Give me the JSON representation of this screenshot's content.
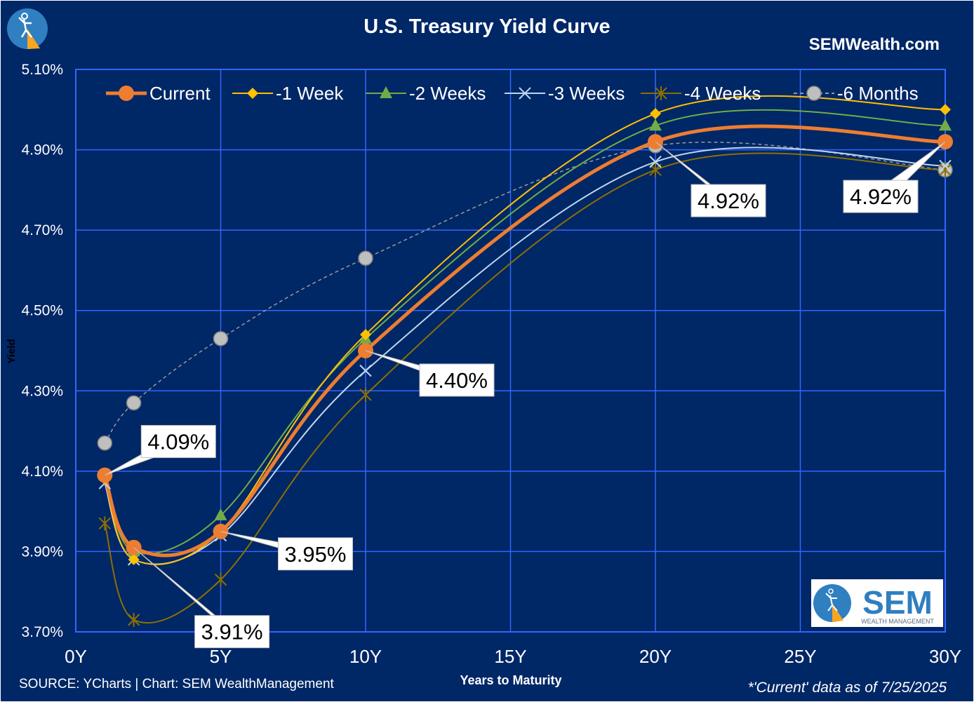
{
  "colors": {
    "background": "#002766",
    "grid": "#3366ff",
    "current": "#ed7d31",
    "week1": "#ffc000",
    "week2": "#70ad47",
    "week3": "#bdd7ee",
    "week4": "#8c7000",
    "month6": "#a5a5a5",
    "logo_blue": "#2f7fc1",
    "logo_orange": "#f5a623"
  },
  "header": {
    "title": "U.S. Treasury Yield Curve",
    "site": "SEMWealth.com"
  },
  "footer": {
    "source": "SOURCE: YCharts | Chart: SEM WealthManagement",
    "asof": "*'Current' data as of 7/25/2025"
  },
  "logo": {
    "brand": "SEM",
    "tagline": "WEALTH MANAGEMENT"
  },
  "chart_data": {
    "type": "line",
    "title": "U.S. Treasury Yield Curve",
    "xlabel": "Years to Maturity",
    "ylabel": "Yield",
    "xlim": [
      0,
      30
    ],
    "ylim": [
      3.7,
      5.1
    ],
    "x_ticks": [
      0,
      5,
      10,
      15,
      20,
      25,
      30
    ],
    "x_tick_labels": [
      "0Y",
      "5Y",
      "10Y",
      "15Y",
      "20Y",
      "25Y",
      "30Y"
    ],
    "y_ticks": [
      3.7,
      3.9,
      4.1,
      4.3,
      4.5,
      4.7,
      4.9,
      5.1
    ],
    "y_tick_labels": [
      "3.70%",
      "3.90%",
      "4.10%",
      "4.30%",
      "4.50%",
      "4.70%",
      "4.90%",
      "5.10%"
    ],
    "grid": true,
    "legend_position": "top",
    "x": [
      1,
      2,
      5,
      10,
      20,
      30
    ],
    "series": [
      {
        "name": "Current",
        "key": "current",
        "marker": "circle",
        "values": [
          4.09,
          3.91,
          3.95,
          4.4,
          4.92,
          4.92
        ]
      },
      {
        "name": "-1 Week",
        "key": "week1",
        "marker": "diamond",
        "values": [
          4.08,
          3.88,
          3.95,
          4.44,
          4.99,
          5.0
        ]
      },
      {
        "name": "-2 Weeks",
        "key": "week2",
        "marker": "triangle",
        "values": [
          4.09,
          3.9,
          3.99,
          4.43,
          4.96,
          4.96
        ]
      },
      {
        "name": "-3 Weeks",
        "key": "week3",
        "marker": "x",
        "values": [
          4.07,
          3.88,
          3.94,
          4.35,
          4.87,
          4.86
        ]
      },
      {
        "name": "-4 Weeks",
        "key": "week4",
        "marker": "star",
        "values": [
          3.97,
          3.73,
          3.83,
          4.29,
          4.85,
          4.85
        ]
      },
      {
        "name": "-6 Months",
        "key": "month6",
        "marker": "circle-gray",
        "values": [
          4.17,
          4.27,
          4.43,
          4.63,
          4.91,
          4.85
        ]
      }
    ],
    "annotations": [
      "4.09%",
      "3.91%",
      "3.95%",
      "4.40%",
      "4.92%",
      "4.92%"
    ]
  }
}
